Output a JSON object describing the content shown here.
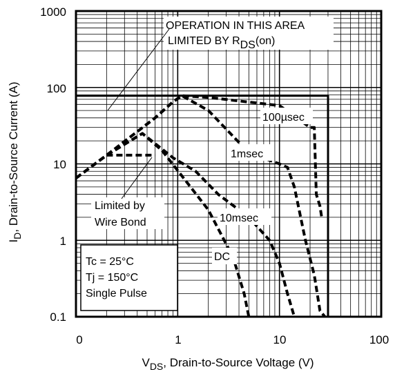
{
  "chart_data": {
    "type": "line",
    "x_scale": "log",
    "y_scale": "log",
    "xlim": [
      0.1,
      100
    ],
    "ylim": [
      0.1,
      1000
    ],
    "grid": true,
    "x_ticks": [
      {
        "value": 0.1,
        "label": "0"
      },
      {
        "value": 1,
        "label": "1"
      },
      {
        "value": 10,
        "label": "10"
      },
      {
        "value": 100,
        "label": "100"
      }
    ],
    "y_ticks": [
      {
        "value": 0.1,
        "label": "0.1"
      },
      {
        "value": 1,
        "label": "1"
      },
      {
        "value": 10,
        "label": "10"
      },
      {
        "value": 100,
        "label": "100"
      },
      {
        "value": 1000,
        "label": "1000"
      }
    ],
    "xlabel": {
      "main": "V",
      "sub": "DS",
      "rest": ", Drain-to-Source Voltage (V)"
    },
    "ylabel": {
      "main": "I",
      "sub": "D",
      "rest": ",  Drain-to-Source Current (A)"
    },
    "series": [
      {
        "name": "100µsec",
        "style": "dashed",
        "points": [
          [
            0.1,
            6.5
          ],
          [
            0.2,
            13
          ],
          [
            0.6,
            40
          ],
          [
            0.9,
            65
          ],
          [
            1.1,
            78
          ],
          [
            2,
            74
          ],
          [
            10,
            58
          ],
          [
            20,
            30
          ],
          [
            22,
            30
          ],
          [
            23,
            4
          ],
          [
            25,
            2.8
          ],
          [
            26,
            2
          ]
        ]
      },
      {
        "name": "1msec",
        "style": "dashed",
        "points": [
          [
            0.1,
            6.5
          ],
          [
            0.2,
            13
          ],
          [
            0.6,
            40
          ],
          [
            0.9,
            65
          ],
          [
            1.1,
            78
          ],
          [
            2,
            50
          ],
          [
            5,
            14
          ],
          [
            10,
            10
          ],
          [
            12,
            9
          ],
          [
            14,
            5
          ],
          [
            18,
            1
          ],
          [
            22,
            0.35
          ],
          [
            25,
            0.12
          ],
          [
            28,
            0.1
          ]
        ]
      },
      {
        "name": "10msec",
        "style": "dashed",
        "points": [
          [
            0.1,
            6.5
          ],
          [
            0.2,
            13
          ],
          [
            0.45,
            25
          ],
          [
            0.9,
            12
          ],
          [
            1.5,
            8
          ],
          [
            2.5,
            4
          ],
          [
            5,
            2
          ],
          [
            8,
            1
          ],
          [
            10,
            0.5
          ],
          [
            12,
            0.2
          ],
          [
            14,
            0.1
          ]
        ]
      },
      {
        "name": "DC",
        "style": "dashed",
        "points": [
          [
            0.1,
            6.5
          ],
          [
            0.2,
            13
          ],
          [
            0.45,
            25
          ],
          [
            0.7,
            15
          ],
          [
            1.2,
            6
          ],
          [
            2,
            2.5
          ],
          [
            3.5,
            0.6
          ],
          [
            4.5,
            0.2
          ],
          [
            5,
            0.1
          ]
        ]
      },
      {
        "name": "Limited by Wire Bond",
        "style": "dashed",
        "points": [
          [
            0.2,
            13
          ],
          [
            0.6,
            13
          ]
        ]
      },
      {
        "name": "Limit",
        "style": "solid",
        "points": [
          [
            0.1,
            78
          ],
          [
            30,
            78
          ],
          [
            30,
            0.1
          ]
        ]
      }
    ],
    "annotations": {
      "rds_line1": "OPERATION IN THIS AREA",
      "rds_line2_a": "LIMITED BY R",
      "rds_line2_sub": "DS",
      "rds_line2_b": "(on)",
      "wire_line1": "Limited by",
      "wire_line2": "Wire Bond",
      "l_100us": "100µsec",
      "l_1ms": "1msec",
      "l_10ms": "10msec",
      "l_dc": "DC",
      "cond_line1": "Tc = 25°C",
      "cond_line2": "Tj = 150°C",
      "cond_line3": "Single Pulse"
    }
  }
}
